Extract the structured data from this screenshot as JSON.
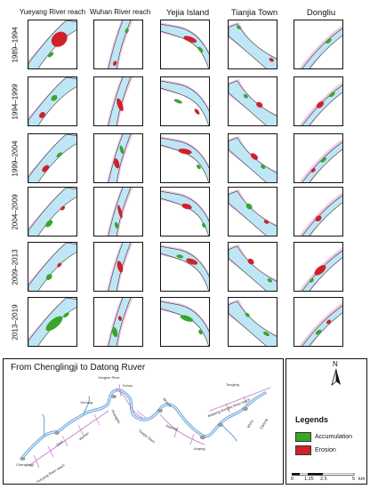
{
  "columns": [
    "Yueyang River reach",
    "Wuhan River reach",
    "Yejia Island",
    "Tianjia Town",
    "Dongliu"
  ],
  "rows": [
    "1989–1994",
    "1994–1999",
    "1999–2004",
    "2004–2009",
    "2009–2013",
    "2013–2019"
  ],
  "map": {
    "title": "From Chenglingji to Datong Ruver",
    "reach_labels": [
      "Yangtze River",
      "Ezhou",
      "Wuhan",
      "Jiayu",
      "Yueyang River reach",
      "Yichang",
      "Huangshi",
      "Tianjia Town",
      "Wuxue",
      "Jiujiang",
      "Mabang-Dongliu River reach",
      "Anqing",
      "Tongling",
      "Wuhu",
      "Datong",
      "Chenglingji"
    ]
  },
  "legend": {
    "title": "Legends",
    "items": [
      {
        "label": "Accumulation",
        "color": "#3aa52b"
      },
      {
        "label": "Erosion",
        "color": "#d0212b"
      }
    ]
  },
  "north_label": "N",
  "scale": {
    "ticks": [
      "0",
      "1.25",
      "2.5",
      "5"
    ],
    "unit": "km"
  },
  "colors": {
    "water": "#bfe6f5",
    "bank": "#f3c9e6",
    "accumulation": "#3aa52b",
    "erosion": "#d0212b",
    "river_line": "#6a9fd8",
    "reach_line": "#c67fc9"
  }
}
